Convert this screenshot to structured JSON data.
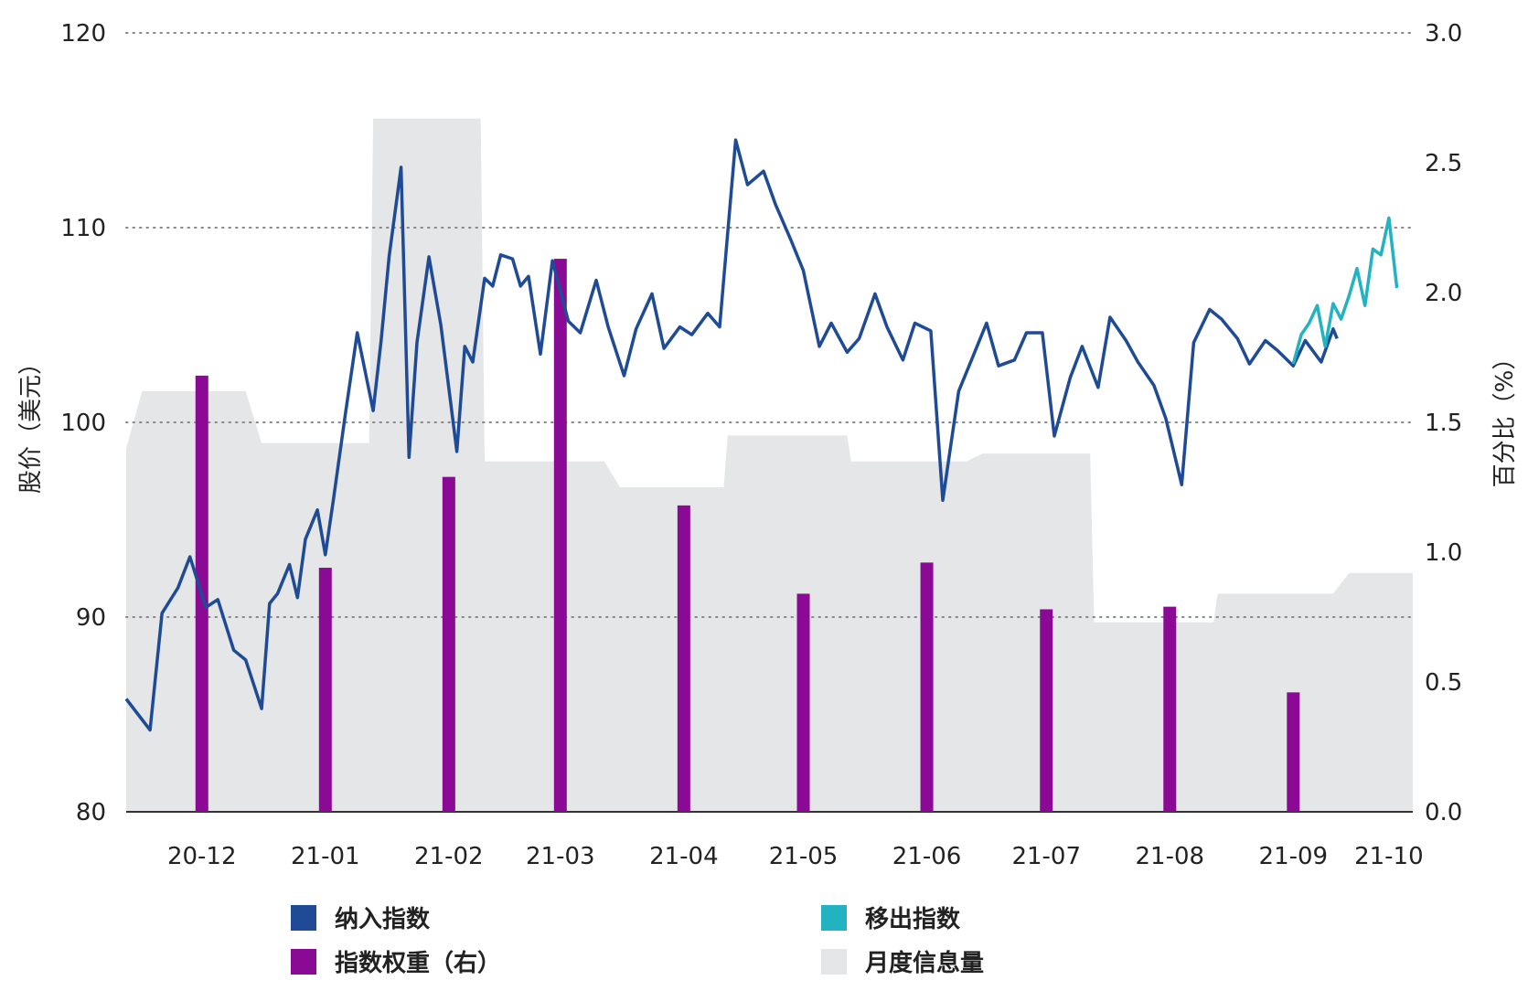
{
  "colors": {
    "included": "#1f4a96",
    "removed": "#21b3c2",
    "weight": "#8a0a96",
    "volume": "#e5e6e8",
    "grid": "#888888",
    "text": "#222222"
  },
  "chart_data": {
    "type": "line",
    "title": "",
    "ylabel": "股价（美元）",
    "y2label": "百分比（%）",
    "grid": "horizontal-dotted",
    "legend": "bottom",
    "x_ticks": [
      "20-12",
      "21-01",
      "21-02",
      "21-03",
      "21-04",
      "21-05",
      "21-06",
      "21-07",
      "21-08",
      "21-09",
      "21-10"
    ],
    "y_left": {
      "ylim": [
        80,
        120
      ],
      "ticks": [
        "80",
        "90",
        "100",
        "110",
        "120"
      ]
    },
    "y_right": {
      "ylim": [
        0.0,
        3.0
      ],
      "ticks": [
        "0.0",
        "0.5",
        "1.0",
        "1.5",
        "2.0",
        "2.5",
        "3.0"
      ]
    },
    "series": [
      {
        "name": "纳入指数",
        "axis": "left",
        "type": "line",
        "x": [
          "2020-12-01",
          "2020-12-07",
          "2020-12-10",
          "2020-12-14",
          "2020-12-17",
          "2020-12-21",
          "2020-12-24",
          "2020-12-28",
          "2020-12-31",
          "2021-01-04",
          "2021-01-06",
          "2021-01-08",
          "2021-01-11",
          "2021-01-13",
          "2021-01-15",
          "2021-01-18",
          "2021-01-20",
          "2021-01-22",
          "2021-01-25",
          "2021-01-28",
          "2021-02-01",
          "2021-02-03",
          "2021-02-05",
          "2021-02-08",
          "2021-02-10",
          "2021-02-12",
          "2021-02-15",
          "2021-02-18",
          "2021-02-22",
          "2021-02-24",
          "2021-02-26",
          "2021-03-01",
          "2021-03-03",
          "2021-03-05",
          "2021-03-08",
          "2021-03-10",
          "2021-03-12",
          "2021-03-15",
          "2021-03-18",
          "2021-03-22",
          "2021-03-25",
          "2021-03-29",
          "2021-04-01",
          "2021-04-05",
          "2021-04-08",
          "2021-04-12",
          "2021-04-15",
          "2021-04-19",
          "2021-04-22",
          "2021-04-26",
          "2021-04-29",
          "2021-05-03",
          "2021-05-06",
          "2021-05-10",
          "2021-05-13",
          "2021-05-17",
          "2021-05-20",
          "2021-05-24",
          "2021-05-27",
          "2021-05-31",
          "2021-06-03",
          "2021-06-07",
          "2021-06-10",
          "2021-06-14",
          "2021-06-17",
          "2021-06-21",
          "2021-06-24",
          "2021-06-28",
          "2021-07-01",
          "2021-07-05",
          "2021-07-08",
          "2021-07-12",
          "2021-07-15",
          "2021-07-19",
          "2021-07-22",
          "2021-07-26",
          "2021-07-29",
          "2021-08-02",
          "2021-08-05",
          "2021-08-09",
          "2021-08-12",
          "2021-08-16",
          "2021-08-19",
          "2021-08-23",
          "2021-08-26",
          "2021-08-30",
          "2021-09-02",
          "2021-09-06",
          "2021-09-09",
          "2021-09-13",
          "2021-09-16",
          "2021-09-20",
          "2021-09-23",
          "2021-09-27",
          "2021-09-30",
          "2021-10-01"
        ],
        "y": [
          85.8,
          84.2,
          90.2,
          91.5,
          93.1,
          90.5,
          90.9,
          88.3,
          87.8,
          85.3,
          90.7,
          91.2,
          92.7,
          91.0,
          94.0,
          95.5,
          93.2,
          96.0,
          100.4,
          104.6,
          100.6,
          104.2,
          108.5,
          113.1,
          98.2,
          104.1,
          108.5,
          105.0,
          98.5,
          103.9,
          103.1,
          107.4,
          107.0,
          108.6,
          108.4,
          107.0,
          107.5,
          103.5,
          108.3,
          105.2,
          104.6,
          107.3,
          104.9,
          102.4,
          104.8,
          106.6,
          103.8,
          104.9,
          104.5,
          105.6,
          104.9,
          114.5,
          112.2,
          112.9,
          111.2,
          109.3,
          107.8,
          103.9,
          105.1,
          103.6,
          104.3,
          106.6,
          104.9,
          103.2,
          105.1,
          104.7,
          96.0,
          101.6,
          103.1,
          105.1,
          102.9,
          103.2,
          104.6,
          104.6,
          99.3,
          102.3,
          103.9,
          101.8,
          105.4,
          104.2,
          103.1,
          101.9,
          100.2,
          96.8,
          104.1,
          105.8,
          105.3,
          104.3,
          103.0,
          104.2,
          103.7,
          102.9,
          104.2,
          103.1,
          104.8,
          104.3
        ]
      },
      {
        "name": "移出指数",
        "axis": "left",
        "type": "line",
        "x": [
          "2021-09-20",
          "2021-09-22",
          "2021-09-24",
          "2021-09-26",
          "2021-09-28",
          "2021-09-30",
          "2021-10-02",
          "2021-10-04",
          "2021-10-06",
          "2021-10-08",
          "2021-10-10",
          "2021-10-12",
          "2021-10-14",
          "2021-10-16"
        ],
        "y": [
          103.0,
          104.5,
          105.1,
          106.0,
          103.9,
          106.1,
          105.3,
          106.5,
          107.9,
          106.0,
          108.9,
          108.6,
          110.5,
          106.9
        ]
      },
      {
        "name": "指数权重（右）",
        "axis": "right",
        "type": "bar",
        "x": [
          "2020-12-20",
          "2021-01-20",
          "2021-02-20",
          "2021-03-20",
          "2021-04-20",
          "2021-05-20",
          "2021-06-20",
          "2021-07-20",
          "2021-08-20",
          "2021-09-20"
        ],
        "y": [
          1.68,
          0.94,
          1.29,
          2.13,
          1.18,
          0.84,
          0.96,
          0.78,
          0.79,
          0.46
        ]
      },
      {
        "name": "月度信息量",
        "axis": "right",
        "type": "area",
        "x": [
          "2020-12-01",
          "2020-12-05",
          "2020-12-31",
          "2021-01-04",
          "2021-01-31",
          "2021-02-01",
          "2021-02-28",
          "2021-03-01",
          "2021-03-31",
          "2021-04-04",
          "2021-04-30",
          "2021-05-01",
          "2021-05-31",
          "2021-06-01",
          "2021-06-30",
          "2021-07-04",
          "2021-07-31",
          "2021-08-01",
          "2021-08-31",
          "2021-09-01",
          "2021-09-30",
          "2021-10-04",
          "2021-10-20"
        ],
        "y": [
          1.4,
          1.62,
          1.62,
          1.42,
          1.42,
          2.67,
          2.67,
          1.35,
          1.35,
          1.25,
          1.25,
          1.45,
          1.45,
          1.35,
          1.35,
          1.38,
          1.38,
          0.73,
          0.73,
          0.84,
          0.84,
          0.92,
          0.92
        ]
      }
    ]
  },
  "legend": {
    "included": "纳入指数",
    "removed": "移出指数",
    "weight": "指数权重（右）",
    "volume": "月度信息量"
  }
}
